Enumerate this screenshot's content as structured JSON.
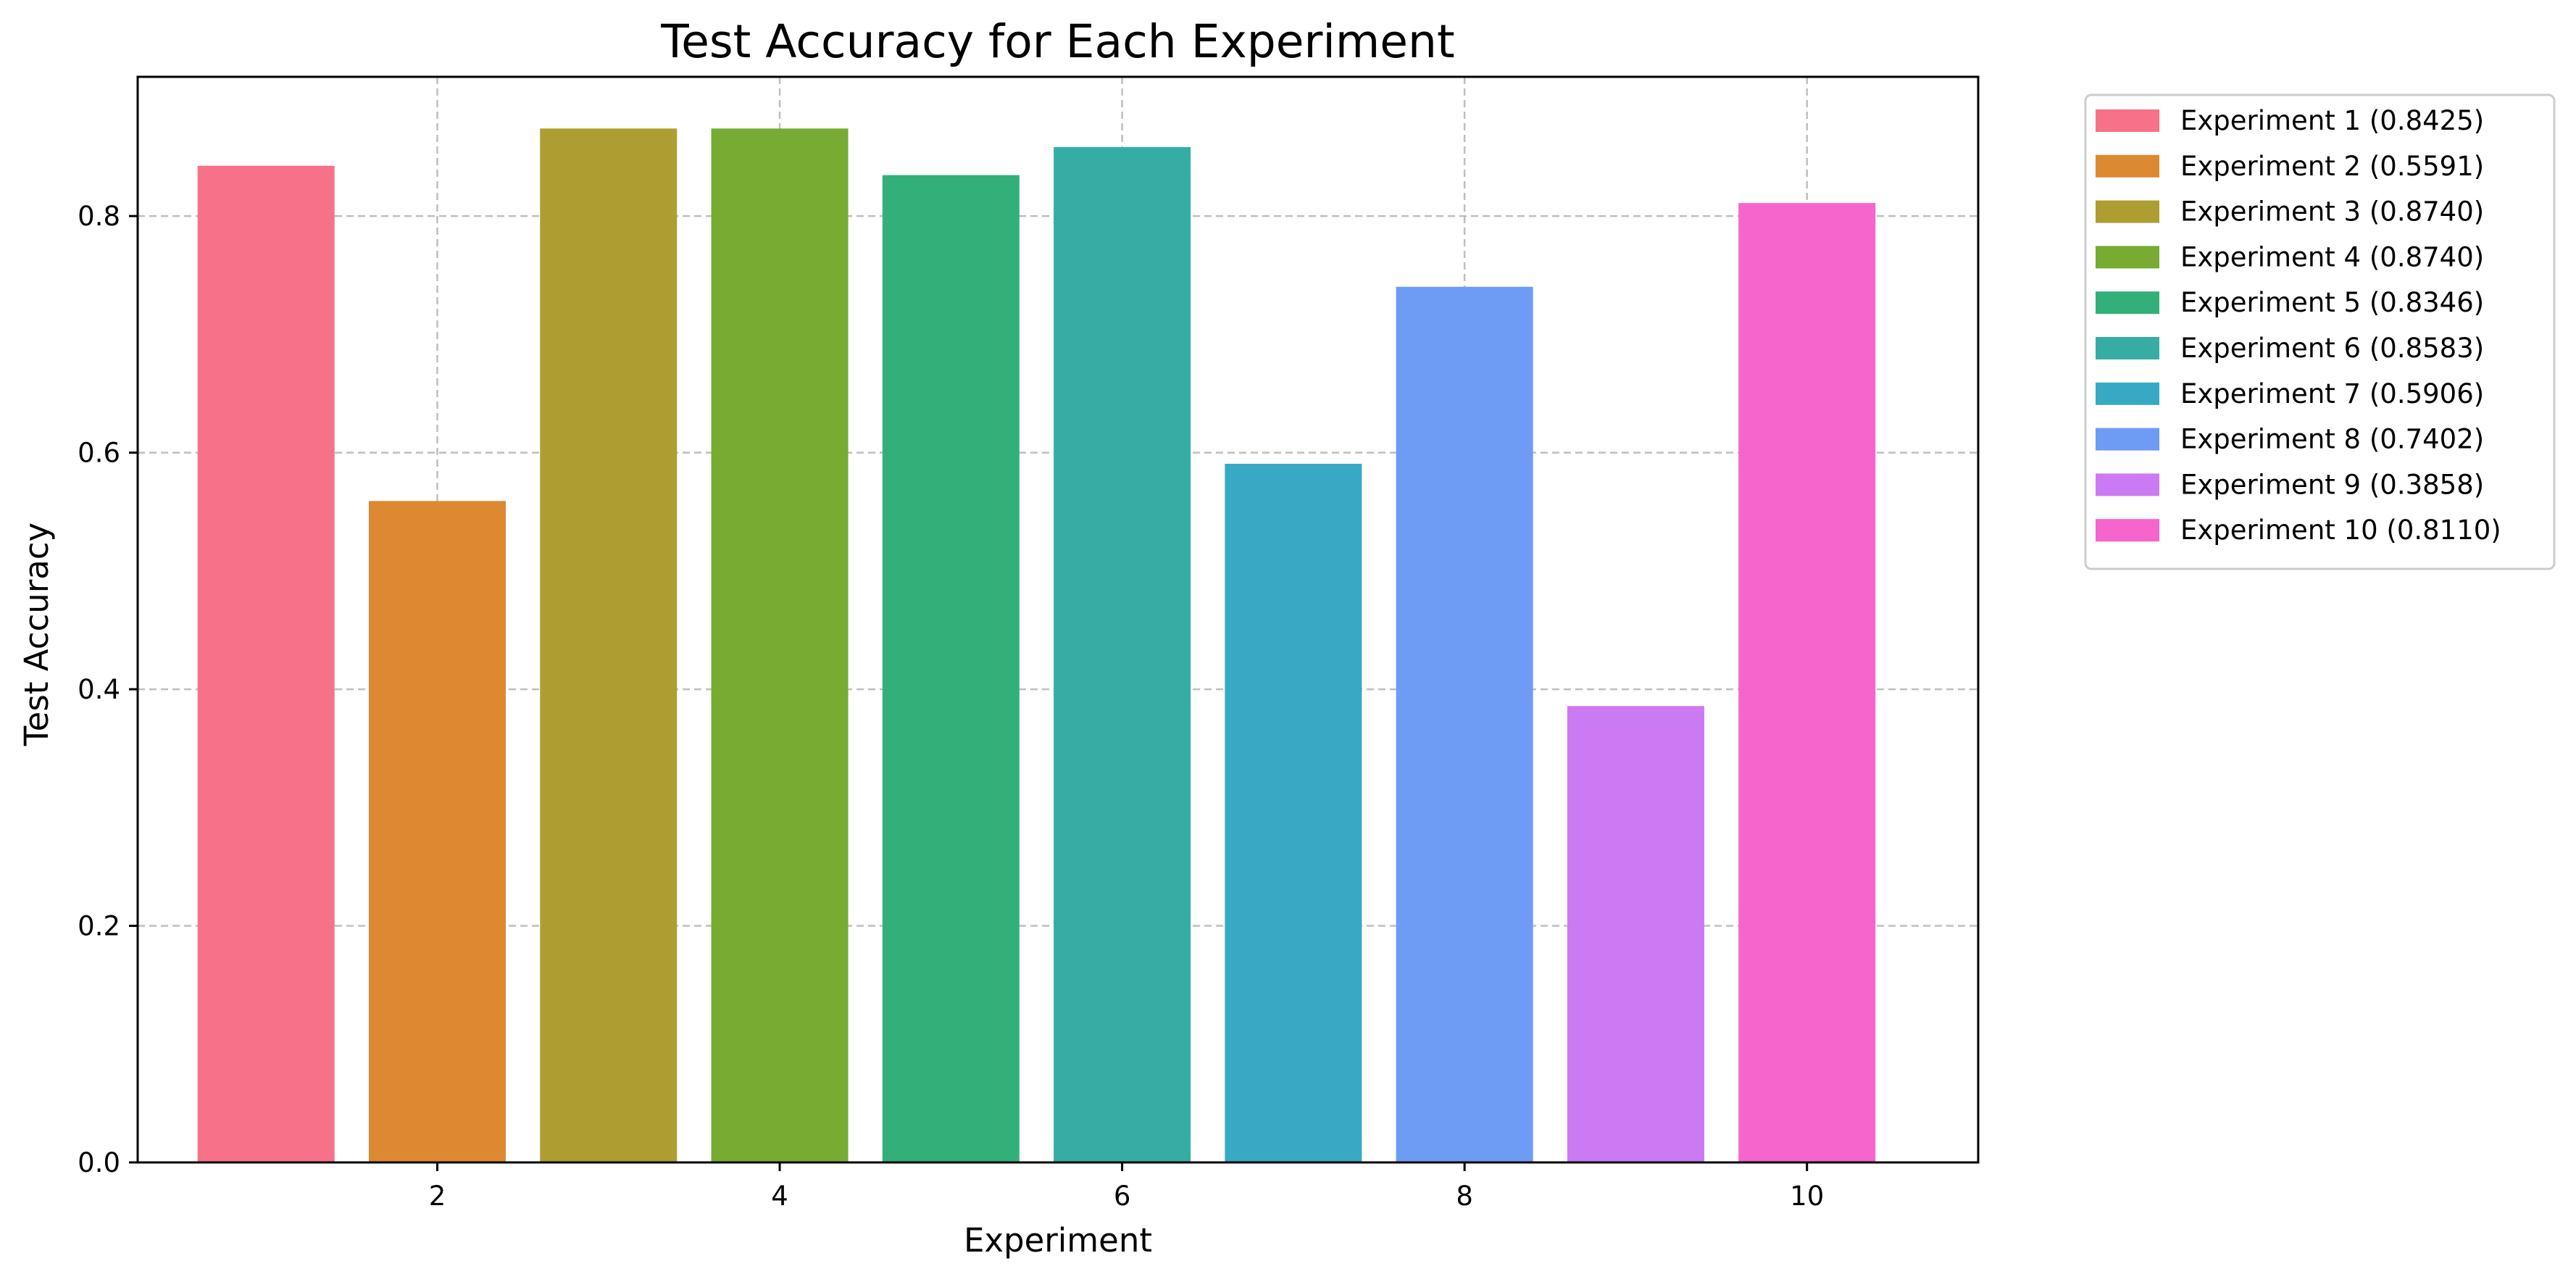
{
  "chart_data": {
    "type": "bar",
    "title": "Test Accuracy for Each Experiment",
    "xlabel": "Experiment",
    "ylabel": "Test Accuracy",
    "x": [
      1,
      2,
      3,
      4,
      5,
      6,
      7,
      8,
      9,
      10
    ],
    "values": [
      0.8425,
      0.5591,
      0.874,
      0.874,
      0.8346,
      0.8583,
      0.5906,
      0.7402,
      0.3858,
      0.811
    ],
    "colors": [
      "#f77189",
      "#dc8932",
      "#ae9d31",
      "#77ab31",
      "#33b07a",
      "#36ada4",
      "#38a9c5",
      "#6e9bf4",
      "#cc7af4",
      "#f565cc"
    ],
    "xlim": [
      0.25,
      11.0
    ],
    "ylim": [
      0,
      0.9177
    ],
    "xticks": [
      "2",
      "4",
      "6",
      "8",
      "10"
    ],
    "xtick_values": [
      2,
      4,
      6,
      8,
      10
    ],
    "yticks": [
      "0.0",
      "0.2",
      "0.4",
      "0.6",
      "0.8"
    ],
    "ytick_values": [
      0,
      0.2,
      0.4,
      0.6,
      0.8
    ],
    "grid": true,
    "legend_position": "outside-right-top",
    "legend": [
      "Experiment 1 (0.8425)",
      "Experiment 2 (0.5591)",
      "Experiment 3 (0.8740)",
      "Experiment 4 (0.8740)",
      "Experiment 5 (0.8346)",
      "Experiment 6 (0.8583)",
      "Experiment 7 (0.5906)",
      "Experiment 8 (0.7402)",
      "Experiment 9 (0.3858)",
      "Experiment 10 (0.8110)"
    ]
  }
}
